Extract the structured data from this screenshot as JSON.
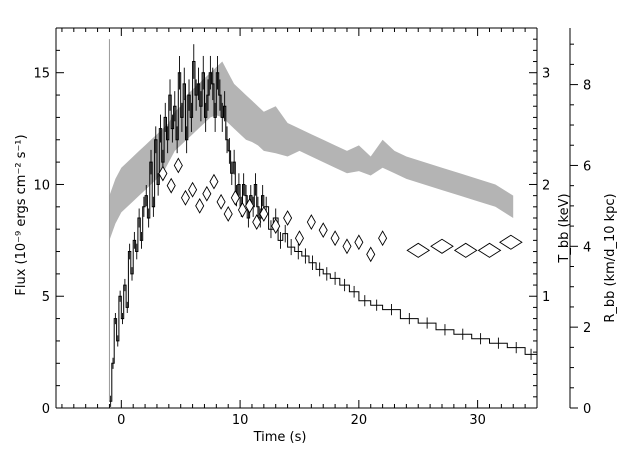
{
  "chart_data": {
    "type": "line",
    "xlabel": "Time (s)",
    "ylabel_left": "Flux (10⁻⁹ ergs cm⁻² s⁻¹)",
    "ylabel_right_temp": "T_bb (keV)",
    "ylabel_right_radius": "R_bb (km/d_10 kpc)",
    "xlim": [
      -5.5,
      35
    ],
    "ylim_flux": [
      0,
      17
    ],
    "ylim_temp": [
      0,
      3.4
    ],
    "ylim_radius": [
      0,
      9.4
    ],
    "x_ticks": [
      0,
      10,
      20,
      30
    ],
    "flux_ticks": [
      0,
      5,
      10,
      15
    ],
    "temp_ticks": [
      1,
      2,
      3
    ],
    "radius_ticks": [
      0,
      2,
      4,
      6,
      8
    ],
    "series": [
      {
        "name": "",
        "style": "step-with-errorbars",
        "color": "#000000",
        "x": [
          -1.0,
          -0.8,
          -0.6,
          -0.4,
          -0.2,
          0.0,
          0.2,
          0.4,
          0.6,
          0.8,
          1.0,
          1.2,
          1.4,
          1.6,
          1.8,
          2.0,
          2.2,
          2.4,
          2.6,
          2.8,
          3.0,
          3.2,
          3.4,
          3.6,
          3.8,
          4.0,
          4.2,
          4.4,
          4.6,
          4.8,
          5.0,
          5.2,
          5.4,
          5.6,
          5.8,
          6.0,
          6.2,
          6.4,
          6.6,
          6.8,
          7.0,
          7.2,
          7.4,
          7.6,
          7.8,
          8.0,
          8.2,
          8.4,
          8.6,
          8.8,
          9.0,
          9.2,
          9.4,
          9.6,
          9.8,
          10.0,
          10.2,
          10.4,
          10.6,
          10.8,
          11.0,
          11.2,
          11.4,
          11.6,
          11.8,
          12.0,
          12.4,
          12.8,
          13.2,
          13.6,
          14.0,
          14.6,
          15.2,
          15.8,
          16.4,
          17.0,
          17.6,
          18.4,
          19.2,
          20.0,
          21.0,
          22.0,
          23.5,
          25.0,
          26.5,
          28.0,
          29.5,
          31.0,
          32.5,
          34.0
        ],
        "y": [
          0.3,
          2.0,
          4.0,
          3.0,
          5.0,
          4.0,
          5.5,
          4.5,
          7.0,
          6.0,
          7.5,
          7.0,
          8.5,
          7.5,
          9.0,
          9.5,
          8.5,
          11.0,
          9.0,
          12.0,
          10.0,
          12.5,
          11.0,
          13.0,
          12.0,
          14.0,
          12.5,
          13.5,
          12.0,
          15.0,
          13.0,
          14.5,
          12.0,
          14.0,
          13.0,
          15.5,
          14.0,
          14.5,
          13.5,
          15.0,
          13.0,
          14.0,
          15.0,
          14.5,
          13.0,
          15.0,
          14.0,
          13.0,
          13.5,
          12.0,
          11.5,
          10.5,
          11.0,
          9.5,
          10.0,
          9.0,
          10.0,
          9.5,
          8.5,
          9.5,
          9.0,
          10.0,
          9.0,
          8.5,
          9.5,
          9.0,
          8.0,
          8.5,
          7.5,
          7.8,
          7.2,
          7.0,
          6.8,
          6.5,
          6.2,
          6.0,
          5.8,
          5.5,
          5.2,
          4.8,
          4.6,
          4.4,
          4.0,
          3.8,
          3.5,
          3.3,
          3.1,
          2.9,
          2.7,
          2.4
        ]
      },
      {
        "name": "",
        "style": "shaded-band",
        "color": "#b4b4b4",
        "axis": "temp",
        "x": [
          -1.0,
          -0.5,
          0.0,
          0.5,
          1.0,
          1.5,
          2.0,
          2.5,
          3.0,
          3.5,
          4.0,
          4.5,
          5.0,
          5.5,
          6.0,
          6.5,
          7.0,
          7.5,
          8.0,
          8.5,
          9.0,
          9.5,
          10.0,
          10.5,
          11.0,
          11.5,
          12.0,
          13.0,
          14.0,
          15.0,
          16.0,
          17.0,
          18.0,
          19.0,
          20.0,
          21.0,
          22.0,
          23.0,
          24.0,
          25.5,
          27.0,
          28.5,
          30.0,
          31.5,
          33.0
        ],
        "low": [
          1.5,
          1.65,
          1.75,
          1.8,
          1.85,
          1.9,
          1.95,
          2.0,
          2.05,
          2.1,
          2.2,
          2.3,
          2.35,
          2.4,
          2.45,
          2.5,
          2.55,
          2.6,
          2.62,
          2.6,
          2.55,
          2.5,
          2.45,
          2.4,
          2.38,
          2.35,
          2.3,
          2.28,
          2.25,
          2.3,
          2.25,
          2.2,
          2.15,
          2.1,
          2.12,
          2.08,
          2.15,
          2.1,
          2.05,
          2.0,
          1.95,
          1.9,
          1.85,
          1.8,
          1.7
        ],
        "high": [
          1.9,
          2.05,
          2.15,
          2.2,
          2.25,
          2.3,
          2.35,
          2.4,
          2.45,
          2.5,
          2.55,
          2.65,
          2.7,
          2.8,
          2.85,
          2.9,
          2.95,
          3.0,
          3.05,
          3.1,
          3.0,
          2.9,
          2.85,
          2.8,
          2.75,
          2.7,
          2.65,
          2.7,
          2.55,
          2.5,
          2.45,
          2.4,
          2.35,
          2.3,
          2.35,
          2.25,
          2.4,
          2.3,
          2.25,
          2.2,
          2.15,
          2.1,
          2.05,
          2.0,
          1.9
        ]
      },
      {
        "name": "",
        "style": "diamonds",
        "color": "#000000",
        "axis": "radius",
        "x": [
          3.5,
          4.2,
          4.8,
          5.4,
          6.0,
          6.6,
          7.2,
          7.8,
          8.4,
          9.0,
          9.6,
          10.2,
          10.8,
          11.4,
          12.0,
          13.0,
          14.0,
          15.0,
          16.0,
          17.0,
          18.0,
          19.0,
          20.0,
          21.0,
          22.0,
          25.0,
          27.0,
          29.0,
          31.0,
          32.8
        ],
        "y": [
          5.8,
          5.5,
          6.0,
          5.2,
          5.4,
          5.0,
          5.3,
          5.6,
          5.1,
          4.8,
          5.2,
          4.9,
          5.0,
          4.6,
          4.8,
          4.5,
          4.7,
          4.2,
          4.6,
          4.4,
          4.2,
          4.0,
          4.1,
          3.8,
          4.2,
          3.9,
          4.0,
          3.9,
          3.9,
          4.1
        ]
      }
    ]
  }
}
